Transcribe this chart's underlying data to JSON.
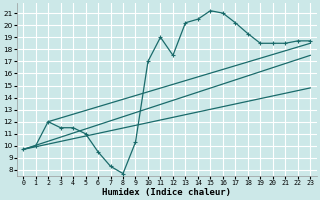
{
  "xlabel": "Humidex (Indice chaleur)",
  "bg_color": "#cce8e8",
  "grid_color": "#ffffff",
  "line_color": "#1a6b6b",
  "xlim": [
    -0.5,
    23.5
  ],
  "ylim": [
    7.5,
    21.8
  ],
  "xticks": [
    0,
    1,
    2,
    3,
    4,
    5,
    6,
    7,
    8,
    9,
    10,
    11,
    12,
    13,
    14,
    15,
    16,
    17,
    18,
    19,
    20,
    21,
    22,
    23
  ],
  "yticks": [
    8,
    9,
    10,
    11,
    12,
    13,
    14,
    15,
    16,
    17,
    18,
    19,
    20,
    21
  ],
  "line1_x": [
    0,
    1,
    2,
    3,
    4,
    5,
    6,
    7,
    8,
    9,
    10,
    11,
    12,
    13,
    14,
    15,
    16,
    17,
    18,
    19,
    20,
    21,
    22,
    23
  ],
  "line1_y": [
    9.7,
    10.0,
    12.0,
    11.5,
    11.5,
    11.0,
    9.5,
    8.3,
    7.7,
    10.3,
    17.0,
    19.0,
    17.5,
    20.2,
    20.5,
    21.2,
    21.0,
    20.2,
    19.3,
    18.5,
    18.5,
    18.5,
    18.7,
    18.7
  ],
  "line2_x": [
    0,
    23
  ],
  "line2_y": [
    9.7,
    17.5
  ],
  "line3_x": [
    0,
    23
  ],
  "line3_y": [
    9.7,
    14.8
  ],
  "line4_x": [
    2,
    23
  ],
  "line4_y": [
    12.0,
    18.5
  ]
}
